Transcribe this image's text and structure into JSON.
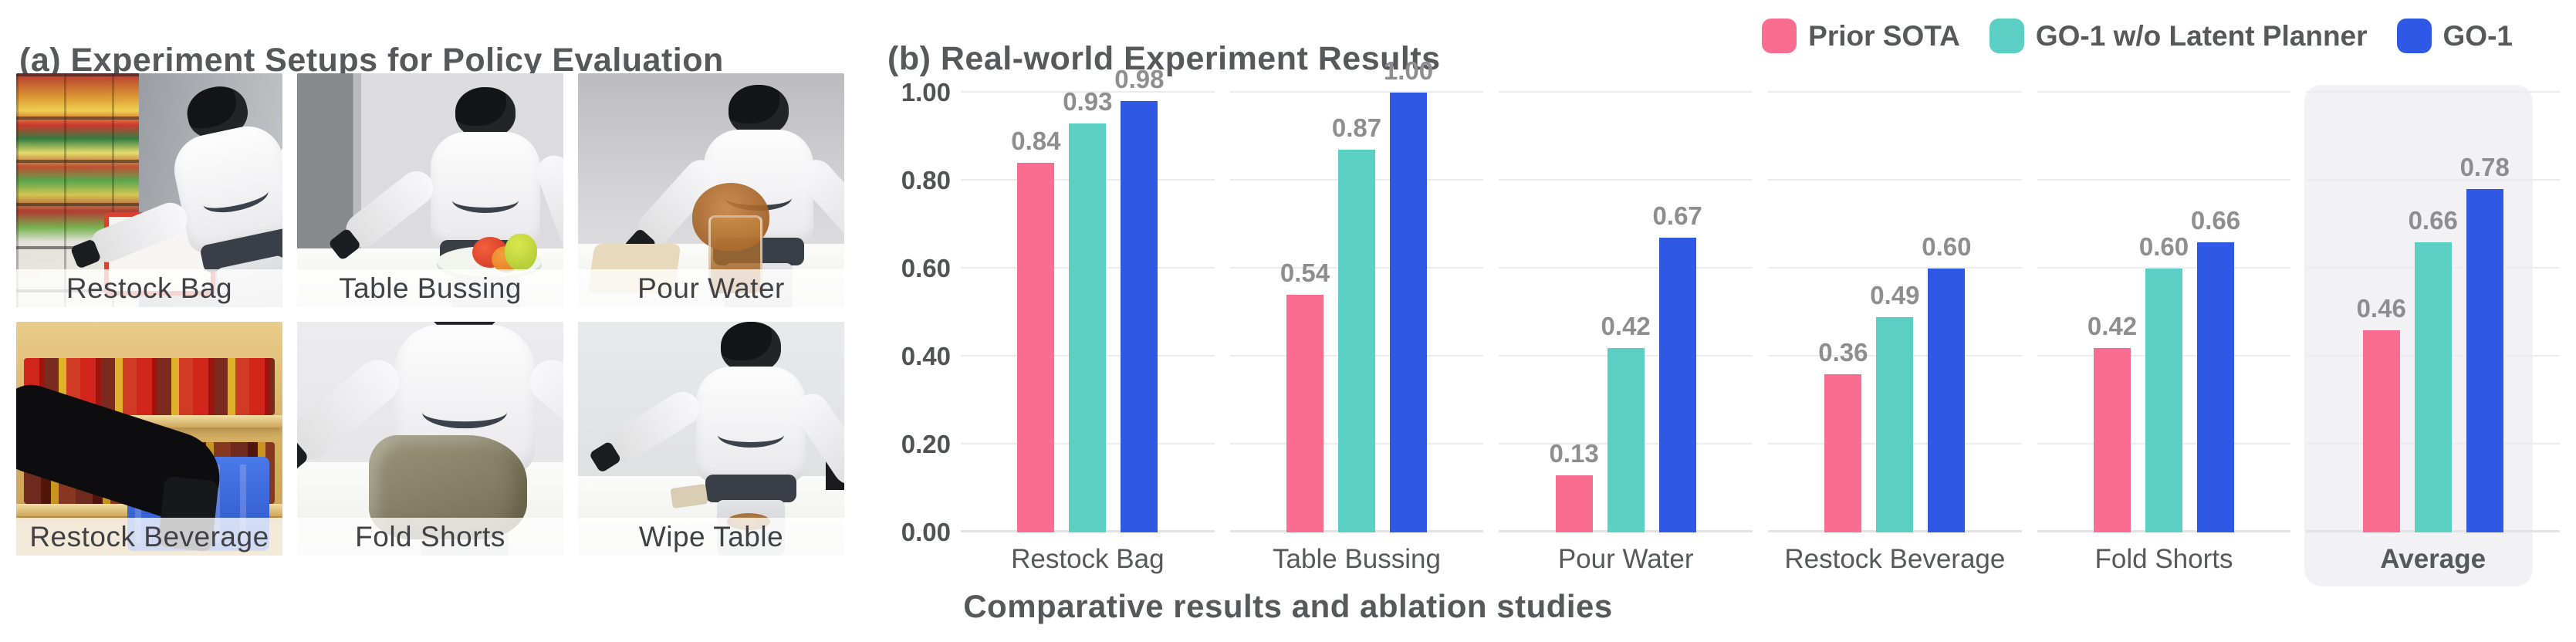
{
  "figure": {
    "caption": "Comparative results and ablation studies"
  },
  "panel_a": {
    "title": "(a) Experiment Setups for Policy Evaluation",
    "setups": [
      {
        "label": "Restock Bag"
      },
      {
        "label": "Table Bussing"
      },
      {
        "label": "Pour Water"
      },
      {
        "label": "Restock Beverage"
      },
      {
        "label": "Fold Shorts"
      },
      {
        "label": "Wipe Table"
      }
    ]
  },
  "panel_b": {
    "title": "(b) Real-world Experiment Results"
  },
  "legend": {
    "position": "top-right",
    "items": [
      {
        "label": "Prior SOTA",
        "color": "#F96E90"
      },
      {
        "label": "GO-1 w/o Latent Planner",
        "color": "#5BCFC4"
      },
      {
        "label": "GO-1",
        "color": "#2F58E4"
      }
    ]
  },
  "chart_data": {
    "type": "bar",
    "title": "(b) Real-world Experiment Results",
    "categories": [
      "Restock Bag",
      "Table Bussing",
      "Pour Water",
      "Restock Beverage",
      "Fold Shorts",
      "Average"
    ],
    "series": [
      {
        "name": "Prior SOTA",
        "color": "#F96E90",
        "values": [
          0.84,
          0.54,
          0.13,
          0.36,
          0.42,
          0.46
        ]
      },
      {
        "name": "GO-1 w/o Latent Planner",
        "color": "#5BCFC4",
        "values": [
          0.93,
          0.87,
          0.42,
          0.49,
          0.6,
          0.66
        ]
      },
      {
        "name": "GO-1",
        "color": "#2F58E4",
        "values": [
          0.98,
          1.0,
          0.67,
          0.6,
          0.66,
          0.78
        ]
      }
    ],
    "ylim": [
      0,
      1.0
    ],
    "yticks": [
      0.0,
      0.2,
      0.4,
      0.6,
      0.8,
      1.0
    ],
    "ytick_labels": [
      "0.00",
      "0.20",
      "0.40",
      "0.60",
      "0.80",
      "1.00"
    ],
    "value_labels": "2dp",
    "grid": true,
    "faceted": true,
    "highlight_category": "Average",
    "highlight_color": "#F2F2F4",
    "legend_position": "top-right",
    "xlabel": "",
    "ylabel": "",
    "caption": "Comparative results and ablation studies"
  },
  "colors": {
    "title_text": "#57585A",
    "tick_text": "#515254",
    "value_label_text": "#8E8E90",
    "gridline": "#ECECEE",
    "baseline": "#E3E3E5"
  }
}
